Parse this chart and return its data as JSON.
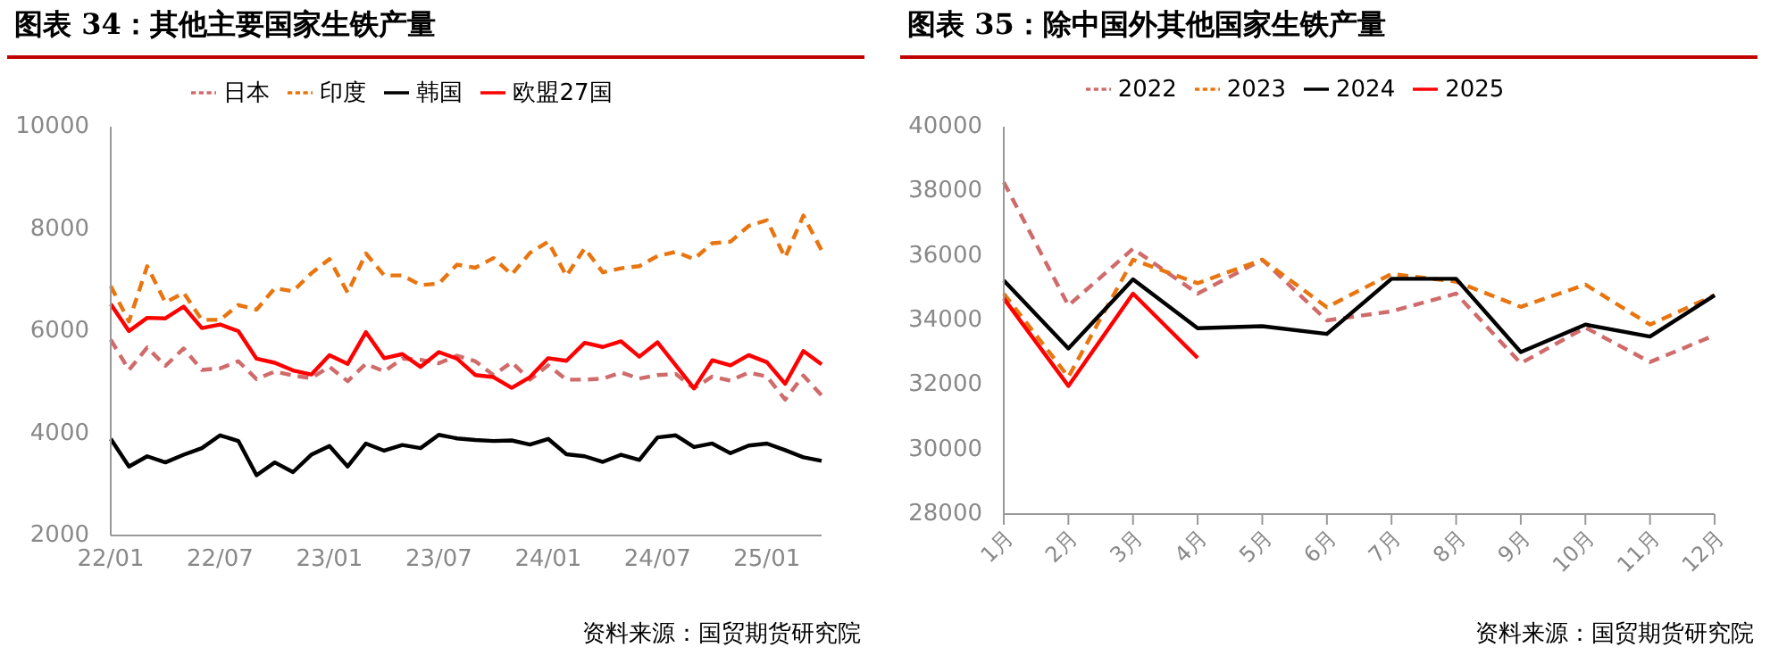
{
  "chart_data": [
    {
      "type": "line",
      "title": "图表 34：其他主要国家生铁产量",
      "categories": [
        "22/01",
        null,
        null,
        null,
        null,
        null,
        "22/07",
        null,
        null,
        null,
        null,
        null,
        "23/01",
        null,
        null,
        null,
        null,
        null,
        "23/07",
        null,
        null,
        null,
        null,
        null,
        "24/01",
        null,
        null,
        null,
        null,
        null,
        "24/07",
        null,
        null,
        null,
        null,
        null,
        "25/01",
        null,
        null,
        null
      ],
      "series": [
        {
          "name": "日本",
          "color": "#d06b6b",
          "line_style": "dashed",
          "values": [
            5830,
            5240,
            5680,
            5320,
            5660,
            5240,
            5270,
            5410,
            5060,
            5210,
            5130,
            5080,
            5300,
            5020,
            5360,
            5210,
            5460,
            5440,
            5370,
            5520,
            5410,
            5140,
            5390,
            5050,
            5330,
            5050,
            5050,
            5070,
            5190,
            5070,
            5140,
            5160,
            4880,
            5110,
            5030,
            5190,
            5110,
            4660,
            5130,
            4740
          ]
        },
        {
          "name": "印度",
          "color": "#e8750f",
          "line_style": "dashed",
          "values": [
            6880,
            6190,
            7270,
            6560,
            6750,
            6220,
            6220,
            6510,
            6420,
            6840,
            6780,
            7130,
            7410,
            6750,
            7520,
            7090,
            7090,
            6900,
            6930,
            7300,
            7240,
            7430,
            7110,
            7530,
            7750,
            7080,
            7620,
            7150,
            7230,
            7270,
            7470,
            7550,
            7410,
            7720,
            7750,
            8060,
            8170,
            7440,
            8260,
            7580
          ]
        },
        {
          "name": "韩国",
          "color": "#000000",
          "line_style": "solid",
          "values": [
            3890,
            3350,
            3550,
            3430,
            3580,
            3710,
            3960,
            3850,
            3180,
            3430,
            3240,
            3580,
            3750,
            3350,
            3800,
            3660,
            3770,
            3710,
            3970,
            3900,
            3870,
            3850,
            3860,
            3780,
            3890,
            3590,
            3550,
            3440,
            3580,
            3480,
            3920,
            3960,
            3730,
            3800,
            3610,
            3760,
            3800,
            3670,
            3530,
            3460
          ]
        },
        {
          "name": "欧盟27国",
          "color": "#ff0000",
          "line_style": "solid",
          "values": [
            6530,
            6000,
            6260,
            6250,
            6480,
            6060,
            6130,
            6000,
            5460,
            5380,
            5230,
            5150,
            5530,
            5360,
            5980,
            5470,
            5550,
            5300,
            5590,
            5460,
            5140,
            5100,
            4890,
            5100,
            5470,
            5420,
            5770,
            5690,
            5800,
            5500,
            5780,
            5330,
            4880,
            5430,
            5330,
            5530,
            5390,
            4970,
            5610,
            5350
          ]
        }
      ],
      "ylim": [
        2000,
        10000
      ],
      "yticks": [
        2000,
        4000,
        6000,
        8000,
        10000
      ],
      "legend": "top",
      "marker": "none",
      "annotations": [
        "资料来源：国贸期货研究院"
      ]
    },
    {
      "type": "line",
      "title": "图表 35：除中国外其他国家生铁产量",
      "categories": [
        "1月",
        "2月",
        "3月",
        "4月",
        "5月",
        "6月",
        "7月",
        "8月",
        "9月",
        "10月",
        "11月",
        "12月"
      ],
      "series": [
        {
          "name": "2022",
          "color": "#d06b6b",
          "line_style": "dashed",
          "values": [
            38280,
            34460,
            36220,
            34830,
            35880,
            34000,
            34280,
            34830,
            32670,
            33780,
            32710,
            33540
          ]
        },
        {
          "name": "2023",
          "color": "#e8750f",
          "line_style": "dashed",
          "values": [
            34830,
            32250,
            35880,
            35150,
            35880,
            34410,
            35440,
            35200,
            34420,
            35110,
            33870,
            34780
          ]
        },
        {
          "name": "2024",
          "color": "#000000",
          "line_style": "solid",
          "values": [
            35240,
            33130,
            35270,
            33760,
            33820,
            33580,
            35290,
            35290,
            33020,
            33870,
            33500,
            34780
          ]
        },
        {
          "name": "2025",
          "color": "#ff0000",
          "line_style": "solid",
          "values": [
            34680,
            31970,
            34830,
            32840,
            null,
            null,
            null,
            null,
            null,
            null,
            null,
            null
          ]
        }
      ],
      "ylim": [
        28000,
        40000
      ],
      "yticks": [
        28000,
        30000,
        32000,
        34000,
        36000,
        38000,
        40000
      ],
      "legend": "top",
      "marker": "none",
      "annotations": [
        "资料来源：国贸期货研究院"
      ]
    }
  ]
}
